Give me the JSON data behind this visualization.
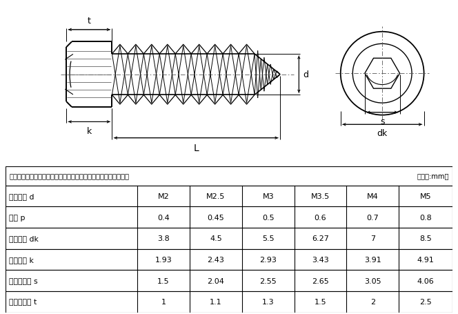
{
  "fig_width": 6.64,
  "fig_height": 4.56,
  "bg_color": "#ffffff",
  "line_color": "#000000",
  "table_header_note": "注：以下为单批测量数据，可能稍有误差，仅供参考，以实际为准",
  "table_unit": "（单位:mm）",
  "rows": [
    [
      "蝶纹直径 d",
      "M2",
      "M2.5",
      "M3",
      "M3.5",
      "M4",
      "M5"
    ],
    [
      "蝶距 p",
      "0.4",
      "0.45",
      "0.5",
      "0.6",
      "0.7",
      "0.8"
    ],
    [
      "头部直径 dk",
      "3.8",
      "4.5",
      "5.5",
      "6.27",
      "7",
      "8.5"
    ],
    [
      "头部厘度 k",
      "1.93",
      "2.43",
      "2.93",
      "3.43",
      "3.91",
      "4.91"
    ],
    [
      "内六角对边 s",
      "1.5",
      "2.04",
      "2.55",
      "2.65",
      "3.05",
      "4.06"
    ],
    [
      "内六角孔深 t",
      "1",
      "1.1",
      "1.3",
      "1.5",
      "2",
      "2.5"
    ]
  ],
  "label_t": "t",
  "label_d": "d",
  "label_k": "k",
  "label_L": "L",
  "label_s": "s",
  "label_dk": "dk"
}
